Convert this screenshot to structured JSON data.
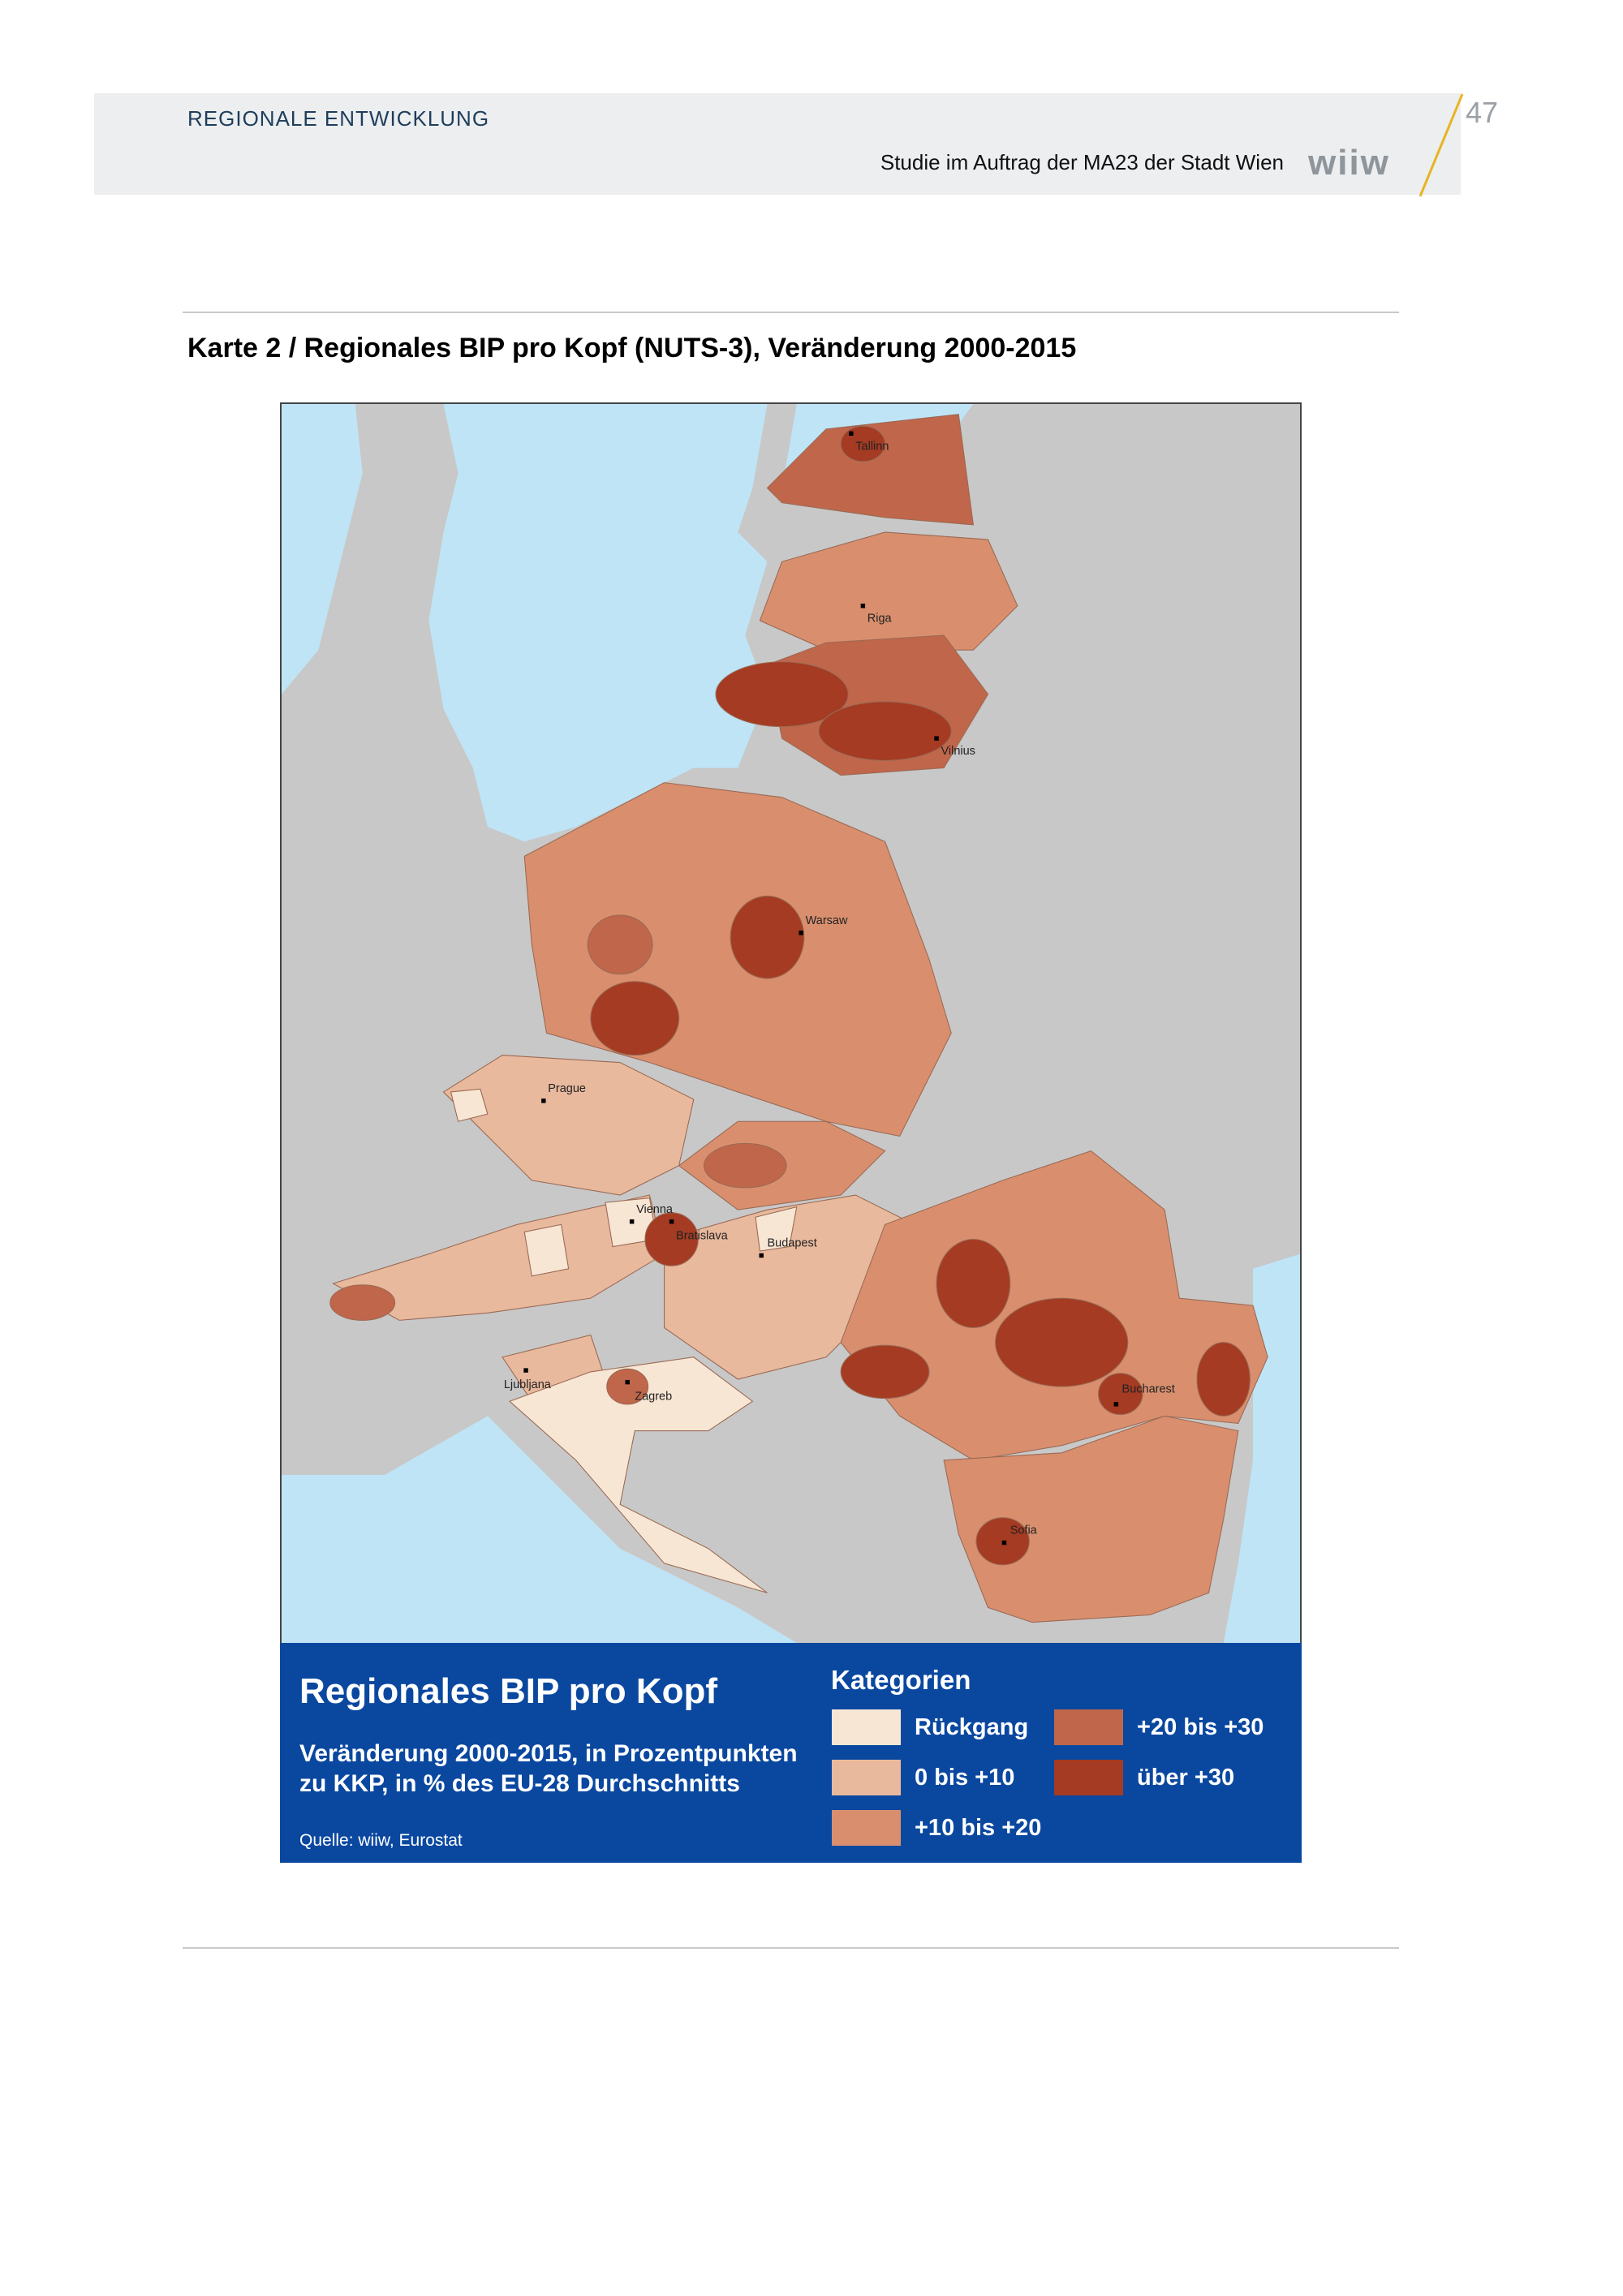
{
  "header": {
    "section": "REGIONALE ENTWICKLUNG",
    "subtitle": "Studie im Auftrag der MA23 der Stadt Wien",
    "logo": "wiiw",
    "page_number": "47"
  },
  "caption": "Karte 2 / Regionales BIP pro Kopf (NUTS-3), Veränderung 2000-2015",
  "map": {
    "cities": [
      "Tallinn",
      "Riga",
      "Vilnius",
      "Warsaw",
      "Prague",
      "Vienna",
      "Bratislava",
      "Budapest",
      "Ljubljana",
      "Zagreb",
      "Bucharest",
      "Sofia"
    ]
  },
  "legend": {
    "title": "Regionales BIP pro Kopf",
    "description": [
      "Veränderung 2000-2015, in Prozentpunkten",
      "zu KKP, in % des EU-28 Durchschnitts"
    ],
    "source": "Quelle: wiiw, Eurostat",
    "categories_title": "Kategorien",
    "categories": [
      {
        "label": "Rückgang",
        "color": "#f8e6d4"
      },
      {
        "label": "0 bis +10",
        "color": "#e9b99d"
      },
      {
        "label": "+10 bis +20",
        "color": "#d98f6e"
      },
      {
        "label": "+20 bis +30",
        "color": "#c0664b"
      },
      {
        "label": "über +30",
        "color": "#a43b22"
      }
    ]
  }
}
